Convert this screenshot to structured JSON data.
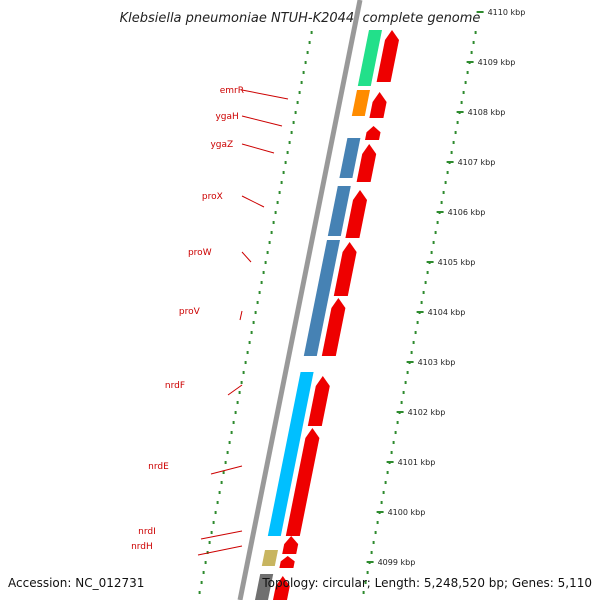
{
  "title": "Klebsiella pneumoniae NTUH-K2044, complete genome",
  "footer": {
    "accession": "Accession: NC_012731",
    "topology": "Topology: circular; Length: 5,248,520 bp; Genes: 5,110"
  },
  "colors": {
    "label": "#cc0000",
    "ruler": "#2e8b2e",
    "backbone": "#999999",
    "strand": "#ee0000"
  },
  "kbp_labels": [
    "4110 kbp",
    "4109 kbp",
    "4108 kbp",
    "4107 kbp",
    "4106 kbp",
    "4105 kbp",
    "4104 kbp",
    "4103 kbp",
    "4102 kbp",
    "4101 kbp",
    "4100 kbp",
    "4099 kbp"
  ],
  "genes": [
    {
      "id": "emrR",
      "label": "emrR",
      "color": "#ff8c00"
    },
    {
      "id": "ygaH",
      "label": "ygaH",
      "color": ""
    },
    {
      "id": "ygaZ",
      "label": "ygaZ",
      "color": "#4682b4"
    },
    {
      "id": "proX",
      "label": "proX",
      "color": "#4682b4"
    },
    {
      "id": "proW",
      "label": "proW",
      "color": "#4682b4"
    },
    {
      "id": "proV",
      "label": "proV",
      "color": "#4682b4"
    },
    {
      "id": "nrdF",
      "label": "nrdF",
      "color": "#00bfff"
    },
    {
      "id": "nrdE",
      "label": "nrdE",
      "color": "#00bfff"
    },
    {
      "id": "nrdI",
      "label": "nrdI",
      "color": "#c8b560"
    },
    {
      "id": "nrdH",
      "label": "nrdH",
      "color": ""
    }
  ]
}
